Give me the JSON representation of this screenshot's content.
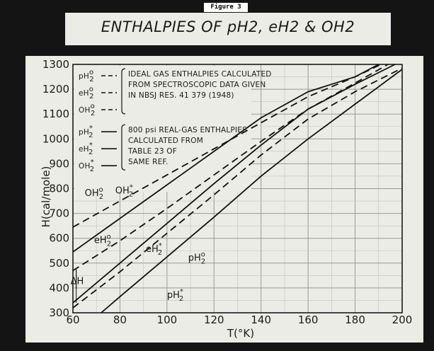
{
  "figure_label": "Figure 3",
  "chart_data": {
    "type": "line",
    "title": "ENTHALPIES OF pH2, eH2 & OH2",
    "xlabel": "T(°K)",
    "ylabel": "H(cal/mole)",
    "xlim": [
      60,
      200
    ],
    "ylim": [
      300,
      1300
    ],
    "xticks": [
      "60",
      "80",
      "100",
      "120",
      "140",
      "160",
      "180",
      "200"
    ],
    "yticks": [
      "300",
      "400",
      "500",
      "600",
      "700",
      "800",
      "900",
      "1000",
      "1100",
      "1200",
      "1300"
    ],
    "grid": true,
    "legend_groups": [
      {
        "entries": [
          {
            "base": "pH",
            "sub": "2",
            "sup": "o",
            "style": "dashed"
          },
          {
            "base": "eH",
            "sub": "2",
            "sup": "o",
            "style": "dashed"
          },
          {
            "base": "OH",
            "sub": "2",
            "sup": "o",
            "style": "dashed"
          }
        ],
        "text": [
          "IDEAL GAS ENTHALPIES CALCULATED",
          "FROM SPECTROSCOPIC DATA GIVEN",
          "IN NBSJ RES. 41 379 (1948)"
        ]
      },
      {
        "entries": [
          {
            "base": "pH",
            "sub": "2",
            "sup": "*",
            "style": "solid"
          },
          {
            "base": "eH",
            "sub": "2",
            "sup": "*",
            "style": "solid"
          },
          {
            "base": "OH",
            "sub": "2",
            "sup": "*",
            "style": "solid"
          }
        ],
        "text": [
          "800 psi REAL-GAS ENTHALPIES",
          "CALCULATED FROM",
          "TABLE 23 OF",
          "SAME REF."
        ]
      }
    ],
    "series": [
      {
        "name": "OH2*",
        "style": "solid",
        "x": [
          60,
          80,
          100,
          120,
          140,
          160,
          180,
          190
        ],
        "y": [
          545,
          680,
          815,
          950,
          1085,
          1190,
          1250,
          1300
        ]
      },
      {
        "name": "OH2°",
        "style": "dashed",
        "x": [
          60,
          80,
          100,
          120,
          140,
          160,
          180,
          191
        ],
        "y": [
          645,
          750,
          855,
          960,
          1065,
          1170,
          1250,
          1300
        ]
      },
      {
        "name": "eH2°",
        "style": "dashed",
        "x": [
          60,
          80,
          100,
          120,
          140,
          160,
          180,
          194
        ],
        "y": [
          470,
          590,
          720,
          855,
          990,
          1120,
          1225,
          1300
        ]
      },
      {
        "name": "eH2*",
        "style": "solid",
        "x": [
          60,
          80,
          100,
          120,
          140,
          160,
          180,
          197
        ],
        "y": [
          340,
          500,
          660,
          820,
          975,
          1120,
          1220,
          1300
        ]
      },
      {
        "name": "pH2°",
        "style": "dashed",
        "x": [
          60,
          80,
          100,
          120,
          140,
          160,
          180,
          200
        ],
        "y": [
          320,
          465,
          620,
          775,
          935,
          1080,
          1190,
          1285
        ]
      },
      {
        "name": "pH2*",
        "style": "solid",
        "x": [
          72,
          80,
          100,
          120,
          140,
          160,
          180,
          200
        ],
        "y": [
          300,
          365,
          525,
          685,
          850,
          1000,
          1140,
          1280
        ]
      }
    ],
    "curve_labels": [
      {
        "base": "OH",
        "sub": "2",
        "sup": "o",
        "x": 65,
        "y": 770
      },
      {
        "base": "OH",
        "sub": "2",
        "sup": "*",
        "x": 78,
        "y": 780
      },
      {
        "base": "eH",
        "sub": "2",
        "sup": "o",
        "x": 69,
        "y": 580
      },
      {
        "base": "eH",
        "sub": "2",
        "sup": "*",
        "x": 91,
        "y": 545
      },
      {
        "base": "pH",
        "sub": "2",
        "sup": "o",
        "x": 109,
        "y": 510
      },
      {
        "base": "pH",
        "sub": "2",
        "sup": "*",
        "x": 100,
        "y": 360
      }
    ],
    "annotation": {
      "text": "ΔH",
      "x": 62,
      "y": 430,
      "arrow_top": 480,
      "arrow_bottom": 340
    }
  }
}
